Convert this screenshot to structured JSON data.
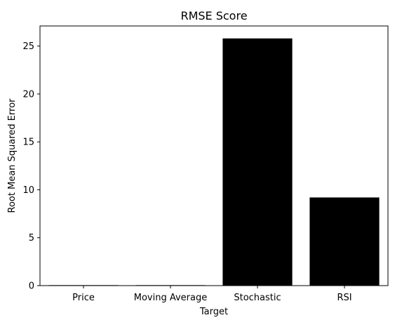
{
  "chart_data": {
    "type": "bar",
    "title": "RMSE Score",
    "xlabel": "Target",
    "ylabel": "Root Mean Squared Error",
    "categories": [
      "Price",
      "Moving Average",
      "Stochastic",
      "RSI"
    ],
    "values": [
      0.05,
      0.05,
      25.8,
      9.2
    ],
    "ylim": [
      0,
      27.1
    ],
    "yticks": [
      0,
      5,
      10,
      15,
      20,
      25
    ],
    "bar_color": "#000000",
    "grid": false,
    "legend": "none"
  }
}
